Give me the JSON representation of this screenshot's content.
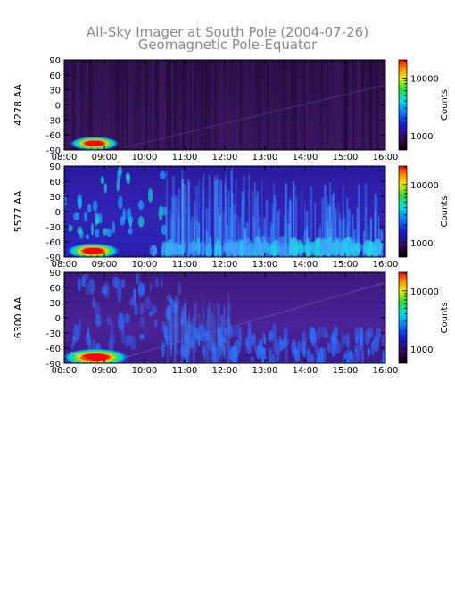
{
  "title": "All-Sky Imager at South Pole (2004-07-26)",
  "subtitle": "Geomagnetic Pole-Equator",
  "colorbar": {
    "label": "Counts",
    "ticks": [
      "10000",
      "1000"
    ]
  },
  "chart_data": [
    {
      "type": "heatmap",
      "ylabel": "4278 AA",
      "x_ticks": [
        "08:00",
        "09:00",
        "10:00",
        "11:00",
        "12:00",
        "13:00",
        "14:00",
        "15:00",
        "16:00"
      ],
      "y_ticks": [
        "90",
        "60",
        "30",
        "0",
        "-30",
        "-60",
        "-90"
      ],
      "xlim": [
        "08:00",
        "16:00"
      ],
      "ylim": [
        -90,
        90
      ],
      "color_scale": "log",
      "colorbar_label": "Counts",
      "colorbar_ticks": [
        10000,
        1000
      ]
    },
    {
      "type": "heatmap",
      "ylabel": "5577 AA",
      "x_ticks": [
        "08:00",
        "09:00",
        "10:00",
        "11:00",
        "12:00",
        "13:00",
        "14:00",
        "15:00",
        "16:00"
      ],
      "y_ticks": [
        "90",
        "60",
        "30",
        "0",
        "-30",
        "-60",
        "-90"
      ],
      "xlim": [
        "08:00",
        "16:00"
      ],
      "ylim": [
        -90,
        90
      ],
      "color_scale": "log",
      "colorbar_label": "Counts",
      "colorbar_ticks": [
        10000,
        1000
      ]
    },
    {
      "type": "heatmap",
      "ylabel": "6300 AA",
      "x_ticks": [
        "08:00",
        "09:00",
        "10:00",
        "11:00",
        "12:00",
        "13:00",
        "14:00",
        "15:00",
        "16:00"
      ],
      "y_ticks": [
        "90",
        "60",
        "30",
        "0",
        "-30",
        "-60",
        "-90"
      ],
      "xlim": [
        "08:00",
        "16:00"
      ],
      "ylim": [
        -90,
        90
      ],
      "color_scale": "log",
      "colorbar_label": "Counts",
      "colorbar_ticks": [
        10000,
        1000
      ]
    }
  ]
}
